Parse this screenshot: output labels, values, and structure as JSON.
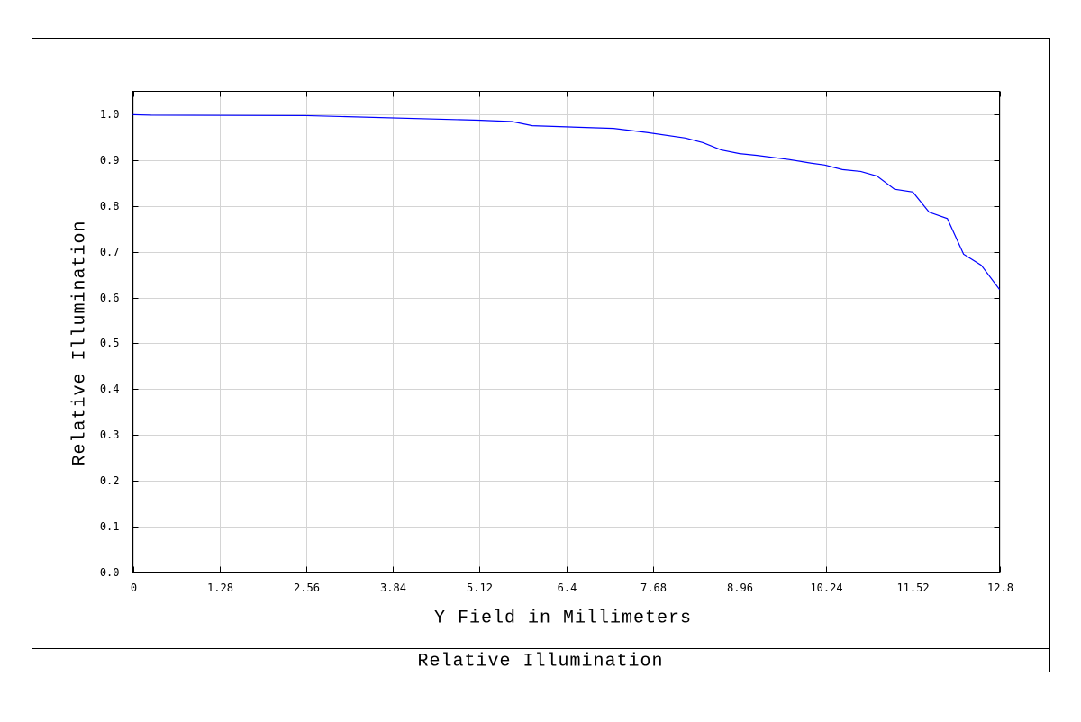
{
  "chart_data": {
    "type": "line",
    "title": "Relative Illumination",
    "x_label": "Y Field in Millimeters",
    "y_label": "Relative Illumination",
    "xlim": [
      0,
      12.8
    ],
    "ylim": [
      0,
      1.051
    ],
    "xticks": [
      0,
      1.28,
      2.56,
      3.84,
      5.12,
      6.4,
      7.68,
      8.96,
      10.24,
      11.52,
      12.8
    ],
    "yticks": [
      {
        "value": 0,
        "label": "0.0"
      },
      0.1,
      0.2,
      0.3,
      0.4,
      0.5,
      0.6,
      0.7,
      0.8,
      0.9,
      {
        "value": 1,
        "label": "1.0"
      }
    ],
    "grid": true,
    "x": [
      0,
      0.27,
      2.56,
      5.1,
      5.6,
      5.9,
      7.1,
      7.6,
      8.16,
      8.42,
      8.69,
      8.96,
      9.22,
      9.69,
      10.02,
      10.22,
      10.48,
      10.75,
      10.99,
      11.25,
      11.52,
      11.76,
      12.03,
      12.27,
      12.53,
      12.8
    ],
    "series": [
      {
        "color": "#0000ff",
        "values": [
          1.0,
          0.999,
          0.998,
          0.988,
          0.985,
          0.976,
          0.97,
          0.961,
          0.949,
          0.939,
          0.923,
          0.915,
          0.911,
          0.902,
          0.894,
          0.89,
          0.88,
          0.876,
          0.866,
          0.837,
          0.831,
          0.787,
          0.773,
          0.695,
          0.671,
          0.618
        ]
      }
    ]
  }
}
